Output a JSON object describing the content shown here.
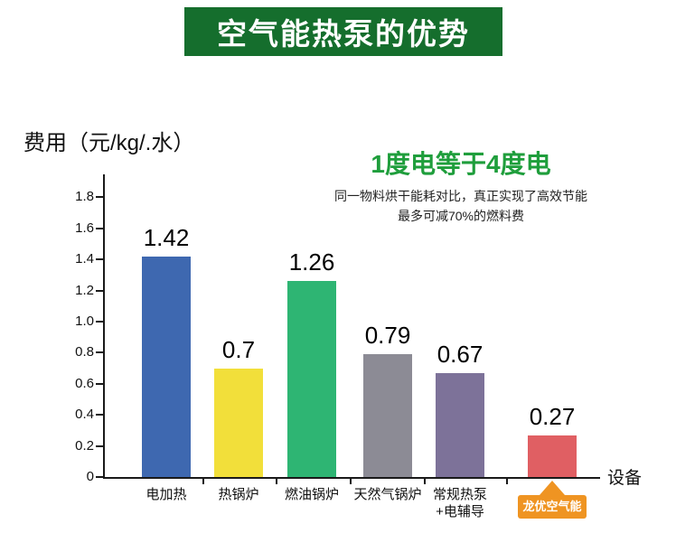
{
  "banner": {
    "title": "空气能热泵的优势",
    "bg_color": "#156e2d",
    "text_color": "#ffffff"
  },
  "headline": {
    "text": "1度电等于4度电",
    "color": "#1f9e3c"
  },
  "subtext": {
    "line1": "同一物料烘干能耗对比，真正实现了高效节能",
    "line2": "最多可减70%的燃料费"
  },
  "chart_data": {
    "type": "bar",
    "title": "费用（元/kg/.水）",
    "xlabel": "设备",
    "ylabel": "",
    "ylim": [
      0,
      1.8
    ],
    "ytick_step": 0.2,
    "grid": false,
    "categories": [
      "电加热",
      "热锅炉",
      "燃油锅炉",
      "天然气锅炉",
      "常规热泵\n+电辅导",
      "龙优空气能"
    ],
    "values": [
      1.42,
      0.7,
      1.26,
      0.79,
      0.67,
      0.27
    ],
    "value_labels": [
      "1.42",
      "0.7",
      "1.26",
      "0.79",
      "0.67",
      "0.27"
    ],
    "colors": [
      "#3e68b0",
      "#f2df3a",
      "#2eb573",
      "#8c8b95",
      "#7d7299",
      "#e05f63"
    ],
    "highlight": {
      "index": 5,
      "badge_color": "#ef9422",
      "badge_text_color": "#ffffff"
    }
  }
}
